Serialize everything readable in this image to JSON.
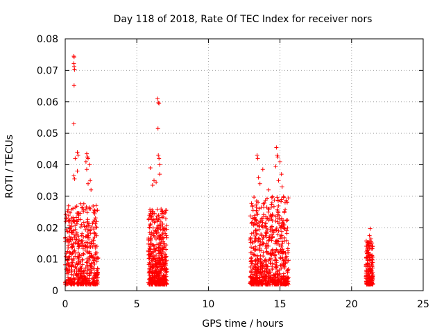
{
  "chart_data": {
    "type": "scatter",
    "title": "Day 118 of 2018, Rate Of TEC Index for receiver nors",
    "xlabel": "GPS time / hours",
    "ylabel": "ROTI / TECUs",
    "xlim": [
      0,
      25
    ],
    "ylim": [
      0,
      0.08
    ],
    "xticks": [
      0,
      5,
      10,
      15,
      20,
      25
    ],
    "yticks": [
      0,
      0.01,
      0.02,
      0.03,
      0.04,
      0.05,
      0.06,
      0.07,
      0.08
    ],
    "xtick_labels": [
      "0",
      "5",
      "10",
      "15",
      "20",
      "25"
    ],
    "ytick_labels": [
      "0",
      "0.01",
      "0.02",
      "0.03",
      "0.04",
      "0.05",
      "0.06",
      "0.07",
      "0.08"
    ],
    "grid": true,
    "marker": "+",
    "series": [
      {
        "name": "ROTI",
        "color": "#ff0000",
        "clusters": [
          {
            "x": [
              0.0,
              2.3
            ],
            "y": [
              0.002,
              0.028
            ],
            "n": 520
          },
          {
            "x": [
              5.8,
              7.1
            ],
            "y": [
              0.002,
              0.026
            ],
            "n": 480
          },
          {
            "x": [
              12.9,
              15.6
            ],
            "y": [
              0.002,
              0.03
            ],
            "n": 680
          },
          {
            "x": [
              21.0,
              21.5
            ],
            "y": [
              0.002,
              0.016
            ],
            "n": 180
          }
        ],
        "points": [
          {
            "x": 0.6,
            "y": 0.0745
          },
          {
            "x": 0.62,
            "y": 0.0742
          },
          {
            "x": 0.6,
            "y": 0.0722
          },
          {
            "x": 0.63,
            "y": 0.0712
          },
          {
            "x": 0.65,
            "y": 0.0702
          },
          {
            "x": 0.62,
            "y": 0.0652
          },
          {
            "x": 0.6,
            "y": 0.053
          },
          {
            "x": 0.85,
            "y": 0.044
          },
          {
            "x": 0.7,
            "y": 0.042
          },
          {
            "x": 0.9,
            "y": 0.043
          },
          {
            "x": 1.5,
            "y": 0.0435
          },
          {
            "x": 1.55,
            "y": 0.0425
          },
          {
            "x": 1.6,
            "y": 0.042
          },
          {
            "x": 1.45,
            "y": 0.041
          },
          {
            "x": 1.7,
            "y": 0.04
          },
          {
            "x": 1.5,
            "y": 0.0385
          },
          {
            "x": 0.85,
            "y": 0.038
          },
          {
            "x": 0.6,
            "y": 0.0365
          },
          {
            "x": 1.75,
            "y": 0.035
          },
          {
            "x": 1.6,
            "y": 0.034
          },
          {
            "x": 0.65,
            "y": 0.0355
          },
          {
            "x": 1.8,
            "y": 0.032
          },
          {
            "x": 0.15,
            "y": 0.016
          },
          {
            "x": 0.2,
            "y": 0.0162
          },
          {
            "x": 6.45,
            "y": 0.061
          },
          {
            "x": 6.5,
            "y": 0.0597
          },
          {
            "x": 6.55,
            "y": 0.0595
          },
          {
            "x": 6.48,
            "y": 0.0515
          },
          {
            "x": 6.5,
            "y": 0.043
          },
          {
            "x": 6.55,
            "y": 0.042
          },
          {
            "x": 6.6,
            "y": 0.04
          },
          {
            "x": 5.95,
            "y": 0.039
          },
          {
            "x": 6.6,
            "y": 0.037
          },
          {
            "x": 6.2,
            "y": 0.035
          },
          {
            "x": 6.35,
            "y": 0.0345
          },
          {
            "x": 6.1,
            "y": 0.0335
          },
          {
            "x": 14.75,
            "y": 0.0455
          },
          {
            "x": 14.8,
            "y": 0.043
          },
          {
            "x": 14.85,
            "y": 0.0425
          },
          {
            "x": 13.4,
            "y": 0.043
          },
          {
            "x": 13.45,
            "y": 0.042
          },
          {
            "x": 15.0,
            "y": 0.041
          },
          {
            "x": 14.7,
            "y": 0.0395
          },
          {
            "x": 13.8,
            "y": 0.0385
          },
          {
            "x": 15.1,
            "y": 0.037
          },
          {
            "x": 13.5,
            "y": 0.036
          },
          {
            "x": 14.9,
            "y": 0.035
          },
          {
            "x": 15.15,
            "y": 0.033
          },
          {
            "x": 13.6,
            "y": 0.034
          },
          {
            "x": 14.2,
            "y": 0.032
          },
          {
            "x": 21.3,
            "y": 0.0197
          },
          {
            "x": 21.25,
            "y": 0.0175
          },
          {
            "x": 21.35,
            "y": 0.0165
          }
        ]
      }
    ]
  }
}
